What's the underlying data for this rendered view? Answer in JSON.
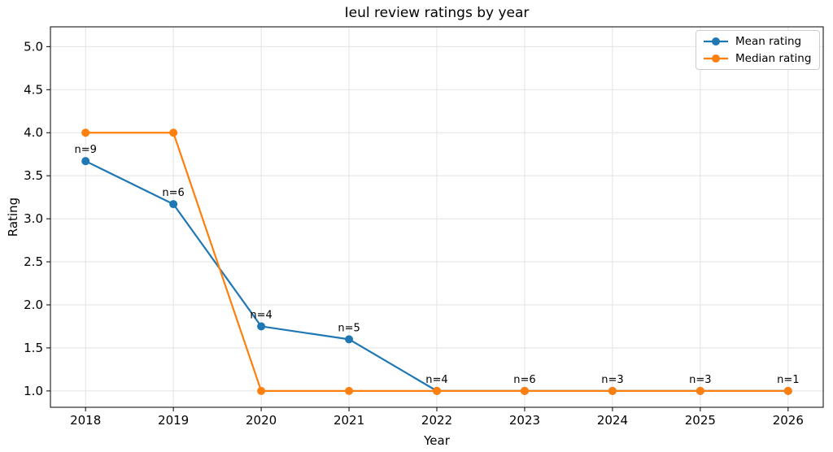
{
  "chart_data": {
    "type": "line",
    "title": "Ieul review ratings by year",
    "xlabel": "Year",
    "ylabel": "Rating",
    "x": [
      2018,
      2019,
      2020,
      2021,
      2022,
      2023,
      2024,
      2025,
      2026
    ],
    "xtick_labels": [
      "2018",
      "2019",
      "2020",
      "2021",
      "2022",
      "2023",
      "2024",
      "2025",
      "2026"
    ],
    "yticks": [
      1.0,
      1.5,
      2.0,
      2.5,
      3.0,
      3.5,
      4.0,
      4.5,
      5.0
    ],
    "ytick_labels": [
      "1.0",
      "1.5",
      "2.0",
      "2.5",
      "3.0",
      "3.5",
      "4.0",
      "4.5",
      "5.0"
    ],
    "xlim": [
      2017.6,
      2026.4
    ],
    "ylim": [
      0.81,
      5.23
    ],
    "grid": true,
    "legend_position": "upper right",
    "series": [
      {
        "name": "Mean rating",
        "color": "#1f77b4",
        "values": [
          3.67,
          3.17,
          1.75,
          1.6,
          1.0,
          1.0,
          1.0,
          1.0,
          1.0
        ],
        "point_labels": [
          "n=9",
          "n=6",
          "n=4",
          "n=5",
          "n=4",
          "n=6",
          "n=3",
          "n=3",
          "n=1"
        ]
      },
      {
        "name": "Median rating",
        "color": "#ff7f0e",
        "values": [
          4.0,
          4.0,
          1.0,
          1.0,
          1.0,
          1.0,
          1.0,
          1.0,
          1.0
        ],
        "point_labels": []
      }
    ],
    "colors": {
      "grid": "#e3e3e3",
      "spine": "#000000",
      "background": "#ffffff",
      "text": "#000000"
    }
  }
}
